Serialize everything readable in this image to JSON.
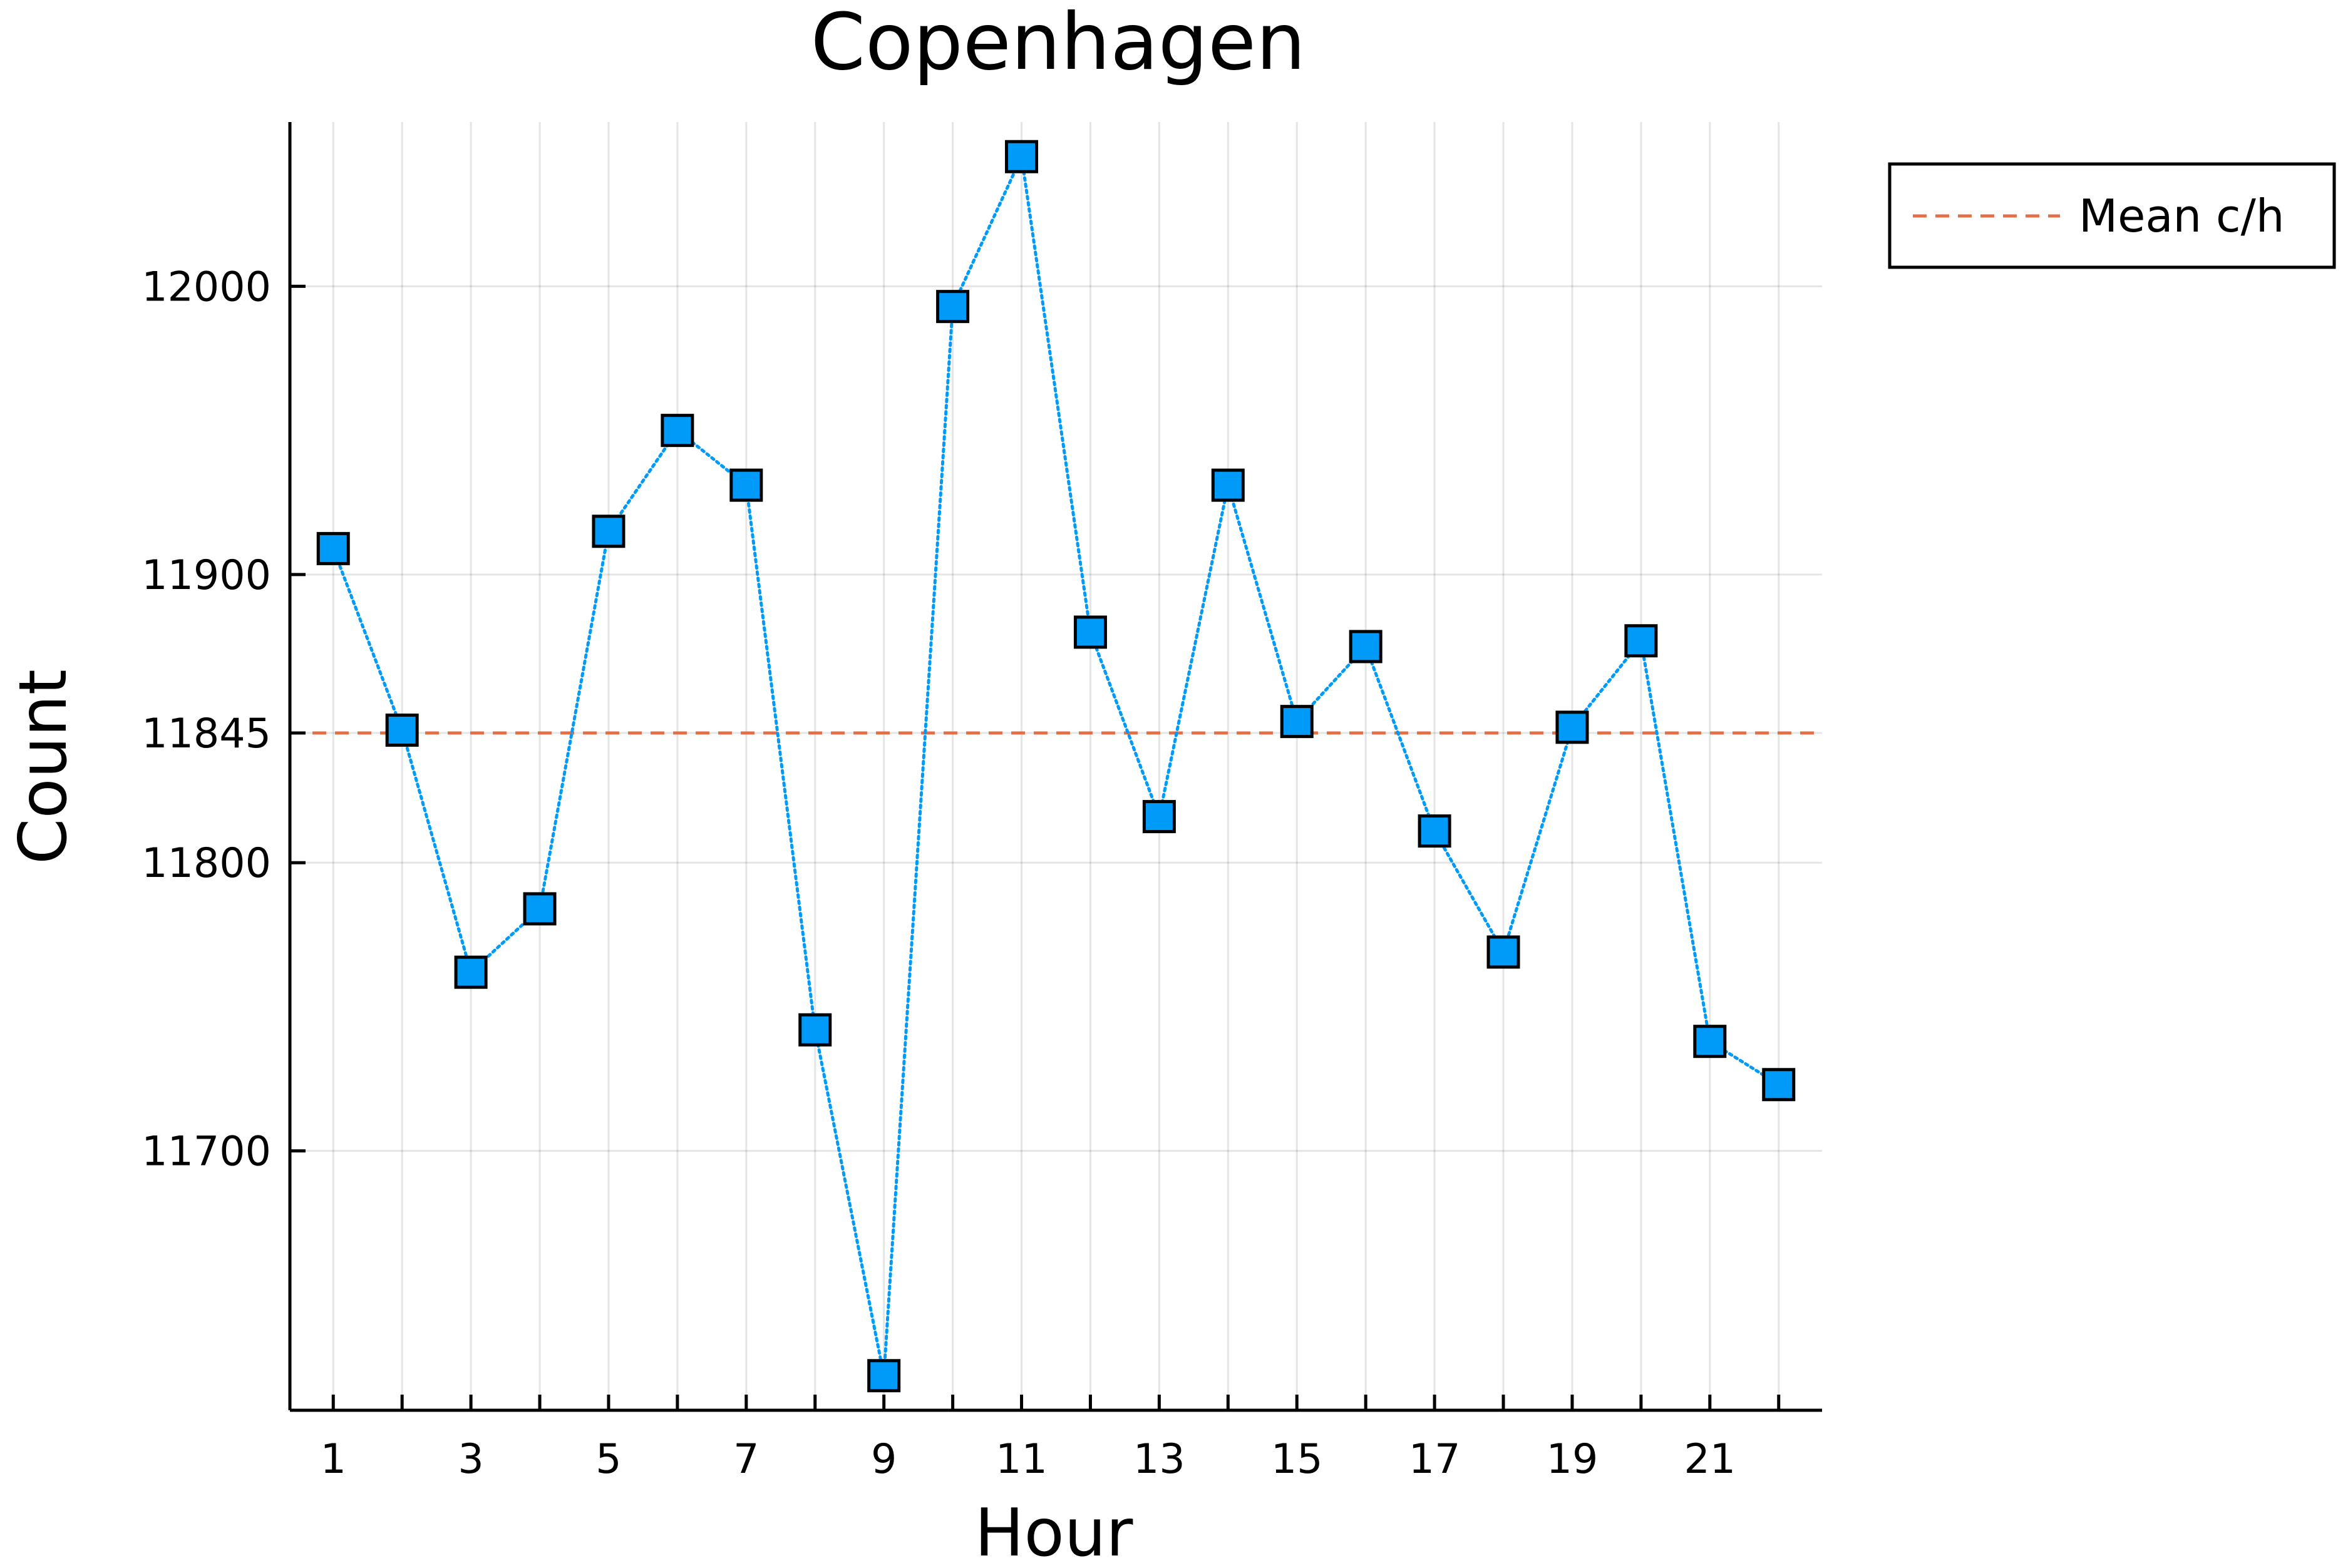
{
  "chart_data": {
    "type": "line",
    "title": "Copenhagen",
    "xlabel": "Hour",
    "ylabel": "Count",
    "x": [
      1,
      2,
      3,
      4,
      5,
      6,
      7,
      8,
      9,
      10,
      11,
      12,
      13,
      14,
      15,
      16,
      17,
      18,
      19,
      20,
      21,
      22
    ],
    "series": [
      {
        "name": "",
        "values": [
          11909,
          11846,
          11762,
          11784,
          11915,
          11950,
          11931,
          11742,
          11622,
          11993,
          12045,
          11880,
          11816,
          11931,
          11849,
          11875,
          11811,
          11769,
          11847,
          11877,
          11738,
          11723
        ],
        "color": "#009af9",
        "line_style": "dotted",
        "marker": "square"
      }
    ],
    "reference_lines": [
      {
        "name": "Mean c/h",
        "y": 11845,
        "color": "#e26f46",
        "line_style": "dashed"
      }
    ],
    "xticks": [
      1,
      3,
      5,
      7,
      9,
      11,
      13,
      15,
      17,
      19,
      21
    ],
    "xtick_labels": [
      "1",
      "3",
      "5",
      "7",
      "9",
      "11",
      "13",
      "15",
      "17",
      "19",
      "21"
    ],
    "yticks": [
      11700,
      11800,
      11845,
      11900,
      12000
    ],
    "ytick_labels": [
      "11700",
      "11800",
      "11845",
      "11900",
      "12000"
    ],
    "xlim": [
      0.37,
      22.63
    ],
    "ylim": [
      11610,
      12057
    ],
    "grid": true,
    "legend_position": "outer-top-right",
    "legend_entries": [
      "Mean c/h"
    ]
  }
}
